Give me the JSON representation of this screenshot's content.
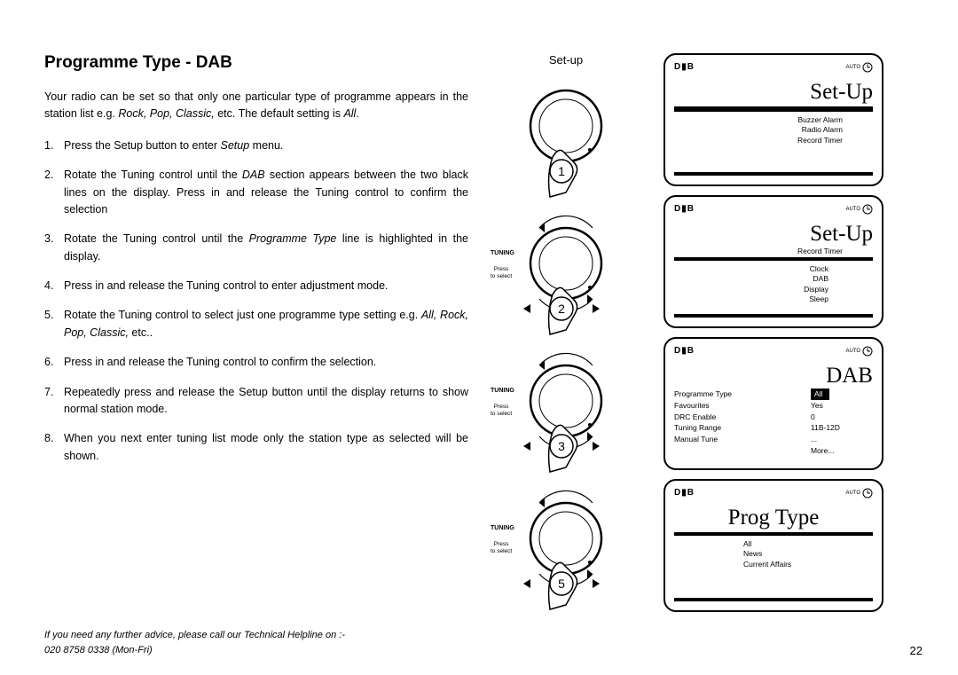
{
  "title": "Programme Type - DAB",
  "intro_before_italic": "Your radio can be set so that only one particular type of programme appears in the station list e.g. ",
  "intro_italic_1": "Rock, Pop, Classic,",
  "intro_mid": " etc. The default setting is ",
  "intro_italic_2": "All",
  "intro_end": ".",
  "steps": [
    {
      "n": "1.",
      "pre": "Press the Setup button   to enter ",
      "it": "Setup",
      "post": " menu."
    },
    {
      "n": "2.",
      "pre": "Rotate the Tuning control   until the ",
      "it": "DAB",
      "post": " section appears between the two black lines on the display. Press in and release the Tuning control  to confirm the selection"
    },
    {
      "n": "3.",
      "pre": "Rotate the Tuning control   until the ",
      "it": "Programme Type",
      "post": " line is highlighted in the display."
    },
    {
      "n": "4.",
      "pre": "Press in and release the Tuning control   to enter adjustment mode.",
      "it": "",
      "post": ""
    },
    {
      "n": "5.",
      "pre": "Rotate the Tuning control   to select just one programme type setting e.g. ",
      "it": "All, Rock, Pop, Classic,",
      "post": " etc.."
    },
    {
      "n": "6.",
      "pre": "Press in and release the Tuning control   to confirm the selection.",
      "it": "",
      "post": ""
    },
    {
      "n": "7.",
      "pre": "Repeatedly press and release the Setup button   until the display returns to show normal station mode.",
      "it": "",
      "post": ""
    },
    {
      "n": "8.",
      "pre": "When you next enter tuning list mode only the station type  as selected will be shown.",
      "it": "",
      "post": ""
    }
  ],
  "helpline_l1": "If you need any further advice, please call our Technical Helpline on :-",
  "helpline_l2": "020 8758 0338 (Mon-Fri)",
  "page_number": "22",
  "mid": {
    "setup_label": "Set-up",
    "tuning": "TUNING",
    "press": "Press",
    "to_select": "to select",
    "dials": [
      "1",
      "2",
      "3",
      "5"
    ]
  },
  "screens": {
    "auto_label": "AUTO",
    "dab_logo": "D▮B",
    "s1": {
      "title": "Set-Up",
      "items": [
        "Buzzer Alarm",
        "Radio Alarm",
        "Record Timer"
      ]
    },
    "s2": {
      "title": "Set-Up",
      "above": "Record Timer",
      "items": [
        "Clock",
        "DAB",
        "Display",
        "Sleep"
      ]
    },
    "s3": {
      "title": "DAB",
      "rows": [
        {
          "l": "Programme Type",
          "r": "All",
          "hl": true
        },
        {
          "l": "Favourites",
          "r": "Yes"
        },
        {
          "l": "DRC Enable",
          "r": "0"
        },
        {
          "l": "Tuning Range",
          "r": "11B-12D"
        },
        {
          "l": "Manual Tune",
          "r": "..."
        }
      ],
      "more": "More..."
    },
    "s4": {
      "title": "Prog Type",
      "items": [
        "All",
        "News",
        "Current Affairs"
      ]
    }
  }
}
